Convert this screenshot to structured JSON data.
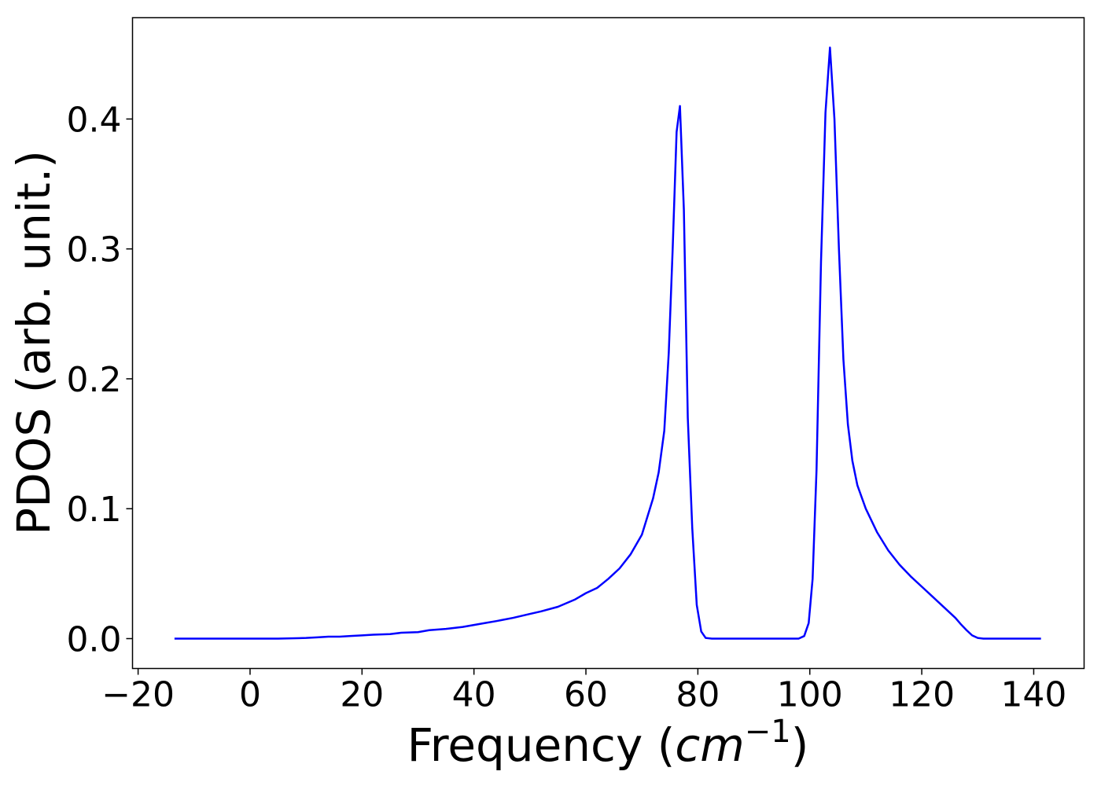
{
  "chart_data": {
    "type": "line",
    "title": "",
    "xlabel": "Frequency",
    "xlabel_unit": "cm",
    "xlabel_unit_exp": "−1",
    "ylabel": "PDOS (arb. unit.)",
    "xlim": [
      -21,
      149
    ],
    "ylim": [
      -0.023,
      0.478
    ],
    "xticks": [
      -20,
      0,
      20,
      40,
      60,
      80,
      100,
      120,
      140
    ],
    "xtick_labels": [
      "−20",
      "0",
      "20",
      "40",
      "60",
      "80",
      "100",
      "120",
      "140"
    ],
    "yticks": [
      0.0,
      0.1,
      0.2,
      0.3,
      0.4
    ],
    "ytick_labels": [
      "0.0",
      "0.1",
      "0.2",
      "0.3",
      "0.4"
    ],
    "grid": false,
    "legend": "none",
    "series": [
      {
        "color": "#0000ff",
        "x": [
          -13.5,
          -5,
          0,
          5,
          10,
          12,
          14,
          16,
          18,
          20,
          22,
          25,
          27,
          30,
          32,
          35,
          38,
          40,
          42,
          44,
          47,
          50,
          52,
          55,
          58,
          60,
          62,
          64,
          66,
          68,
          70,
          71,
          72,
          73,
          74,
          74.8,
          75.5,
          76.2,
          76.8,
          77.5,
          78.2,
          79,
          79.8,
          80.6,
          81.4,
          82.5,
          85,
          90,
          95,
          98,
          99,
          99.8,
          100.5,
          101.2,
          102,
          102.8,
          103.6,
          104.4,
          105.2,
          106,
          106.8,
          107.6,
          108.5,
          110,
          112,
          114,
          116,
          118,
          120,
          122,
          124,
          126,
          127,
          128,
          129,
          130,
          131,
          135,
          141.3
        ],
        "y": [
          0,
          0,
          0,
          0,
          0.0005,
          0.001,
          0.0015,
          0.0015,
          0.002,
          0.0025,
          0.003,
          0.0035,
          0.0045,
          0.005,
          0.0065,
          0.0075,
          0.009,
          0.0105,
          0.012,
          0.0135,
          0.016,
          0.019,
          0.021,
          0.0245,
          0.03,
          0.035,
          0.039,
          0.046,
          0.054,
          0.065,
          0.08,
          0.094,
          0.108,
          0.128,
          0.16,
          0.22,
          0.3,
          0.39,
          0.41,
          0.33,
          0.17,
          0.085,
          0.026,
          0.0055,
          0.0005,
          0,
          0,
          0,
          0,
          0,
          0.002,
          0.012,
          0.046,
          0.13,
          0.29,
          0.405,
          0.455,
          0.4,
          0.3,
          0.215,
          0.165,
          0.137,
          0.118,
          0.1,
          0.082,
          0.068,
          0.057,
          0.048,
          0.04,
          0.032,
          0.024,
          0.016,
          0.011,
          0.0065,
          0.0025,
          0.0005,
          0,
          0,
          0
        ]
      }
    ]
  }
}
